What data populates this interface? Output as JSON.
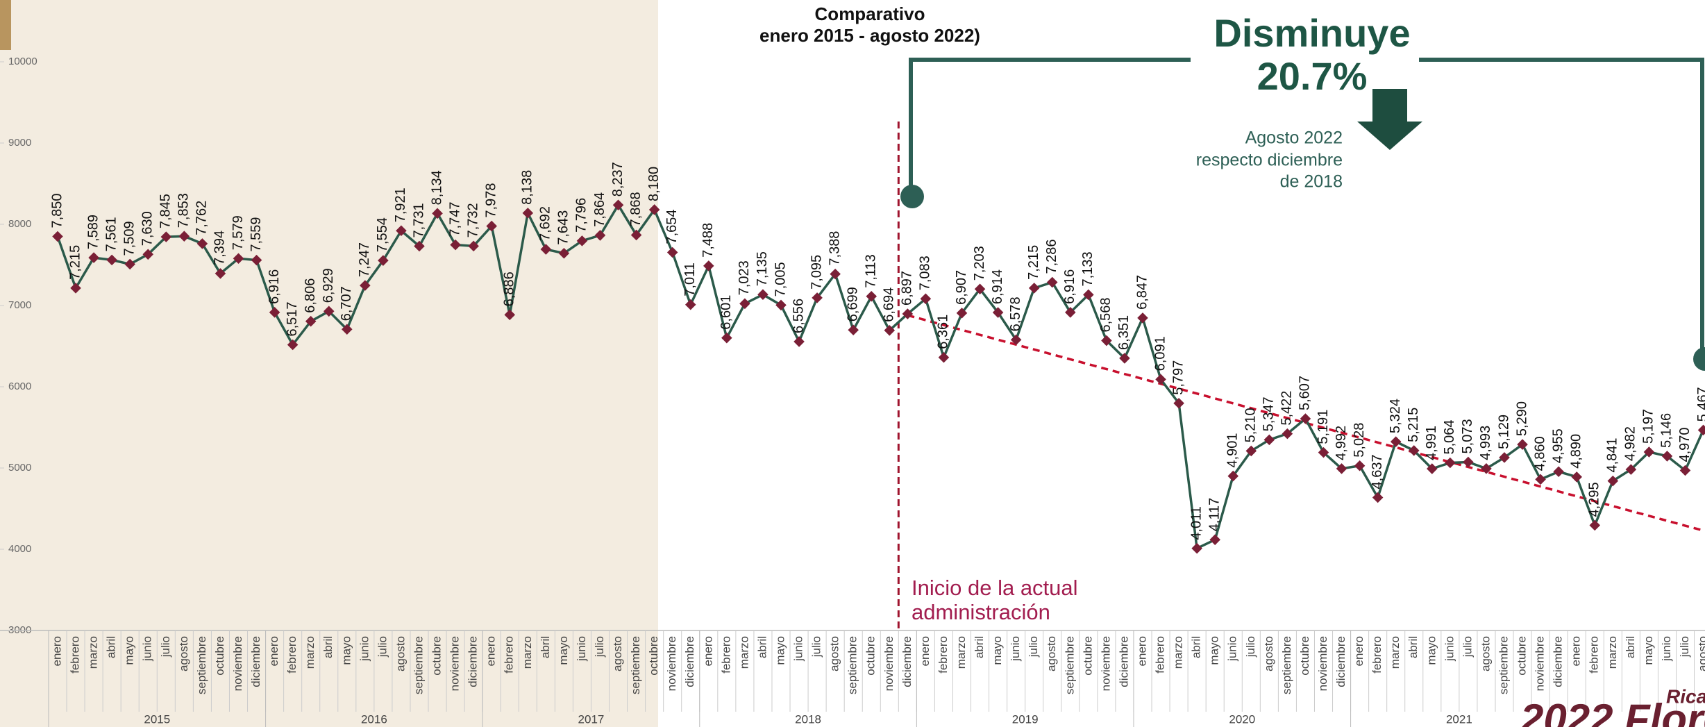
{
  "chart_data": {
    "type": "line",
    "title": "Comparativo",
    "subtitle": "enero 2015 - agosto 2022)",
    "headline": "Disminuye",
    "headline_value": "20.7%",
    "headline_note": [
      "Agosto 2022",
      "respecto diciembre",
      "de 2018"
    ],
    "annotation": [
      "Inicio de la actual",
      "administración"
    ],
    "logo": {
      "year": "2022",
      "name": "Flores",
      "first_name": "Ricardo"
    },
    "categories": [
      "enero",
      "febrero",
      "marzo",
      "abril",
      "mayo",
      "junio",
      "julio",
      "agosto",
      "septiembre",
      "octubre",
      "noviembre",
      "diciembre",
      "enero",
      "febrero",
      "marzo",
      "abril",
      "mayo",
      "junio",
      "julio",
      "agosto",
      "septiembre",
      "octubre",
      "noviembre",
      "diciembre",
      "enero",
      "febrero",
      "marzo",
      "abril",
      "mayo",
      "junio",
      "julio",
      "agosto",
      "septiembre",
      "octubre",
      "noviembre",
      "diciembre",
      "enero",
      "febrero",
      "marzo",
      "abril",
      "mayo",
      "junio",
      "julio",
      "agosto",
      "septiembre",
      "octubre",
      "noviembre",
      "diciembre",
      "enero",
      "febrero",
      "marzo",
      "abril",
      "mayo",
      "junio",
      "julio",
      "agosto",
      "septiembre",
      "octubre",
      "noviembre",
      "diciembre",
      "enero",
      "febrero",
      "marzo",
      "abril",
      "mayo",
      "junio",
      "julio",
      "agosto",
      "septiembre",
      "octubre",
      "noviembre",
      "diciembre",
      "enero",
      "febrero",
      "marzo",
      "abril",
      "mayo",
      "junio",
      "julio",
      "agosto",
      "septiembre",
      "octubre",
      "noviembre",
      "diciembre",
      "enero",
      "febrero",
      "marzo",
      "abril",
      "mayo",
      "junio",
      "julio",
      "agosto"
    ],
    "years": [
      "2015",
      "2016",
      "2017",
      "2018",
      "2019",
      "2020",
      "2021"
    ],
    "values": [
      7850,
      7215,
      7589,
      7561,
      7509,
      7630,
      7845,
      7853,
      7762,
      7394,
      7579,
      7559,
      6916,
      6517,
      6806,
      6929,
      6707,
      7247,
      7554,
      7921,
      7731,
      8134,
      7747,
      7732,
      7978,
      6886,
      8138,
      7692,
      7643,
      7796,
      7864,
      8237,
      7868,
      8180,
      7654,
      7011,
      7488,
      6601,
      7023,
      7135,
      7005,
      6556,
      7095,
      7388,
      6699,
      7113,
      6694,
      6897,
      7083,
      6361,
      6907,
      7203,
      6914,
      6578,
      7215,
      7286,
      6916,
      7133,
      6568,
      6351,
      6847,
      6091,
      5797,
      4011,
      4117,
      4901,
      5210,
      5347,
      5422,
      5607,
      5191,
      4992,
      5028,
      4637,
      5324,
      5215,
      4991,
      5064,
      5073,
      4993,
      5129,
      5290,
      4860,
      4955,
      4890,
      4295,
      4841,
      4982,
      5197,
      5146,
      4970,
      5467
    ],
    "value_labels": [
      "7,850",
      "7,215",
      "7,589",
      "7,561",
      "7,509",
      "7,630",
      "7,845",
      "7,853",
      "7,762",
      "7,394",
      "7,579",
      "7,559",
      "6,916",
      "6,517",
      "6,806",
      "6,929",
      "6,707",
      "7,247",
      "7,554",
      "7,921",
      "7,731",
      "8,134",
      "7,747",
      "7,732",
      "7,978",
      "6,886",
      "8,138",
      "7,692",
      "7,643",
      "7,796",
      "7,864",
      "8,237",
      "7,868",
      "8,180",
      "7,654",
      "7,011",
      "7,488",
      "6,601",
      "7,023",
      "7,135",
      "7,005",
      "6,556",
      "7,095",
      "7,388",
      "6,699",
      "7,113",
      "6,694",
      "6,897",
      "7,083",
      "6,361",
      "6,907",
      "7,203",
      "6,914",
      "6,578",
      "7,215",
      "7,286",
      "6,916",
      "7,133",
      "6,568",
      "6,351",
      "6,847",
      "6,091",
      "5,797",
      "4,011",
      "4,117",
      "4,901",
      "5,210",
      "5,347",
      "5,422",
      "5,607",
      "5,191",
      "4,992",
      "5,028",
      "4,637",
      "5,324",
      "5,215",
      "4,991",
      "5,064",
      "5,073",
      "4,993",
      "5,129",
      "5,290",
      "4,860",
      "4,955",
      "4,890",
      "4,295",
      "4,841",
      "4,982",
      "5,197",
      "5,146",
      "4,970",
      "5,467"
    ],
    "color": "#2b5a4a",
    "marker_color": "#7a1f36",
    "trend_line": {
      "values": [
        6880,
        4230
      ],
      "color": "#c8102e"
    },
    "ylim": [
      3000,
      10000
    ],
    "yticks": [
      3000,
      4000,
      5000,
      6000,
      7000,
      8000,
      9000,
      10000
    ]
  }
}
